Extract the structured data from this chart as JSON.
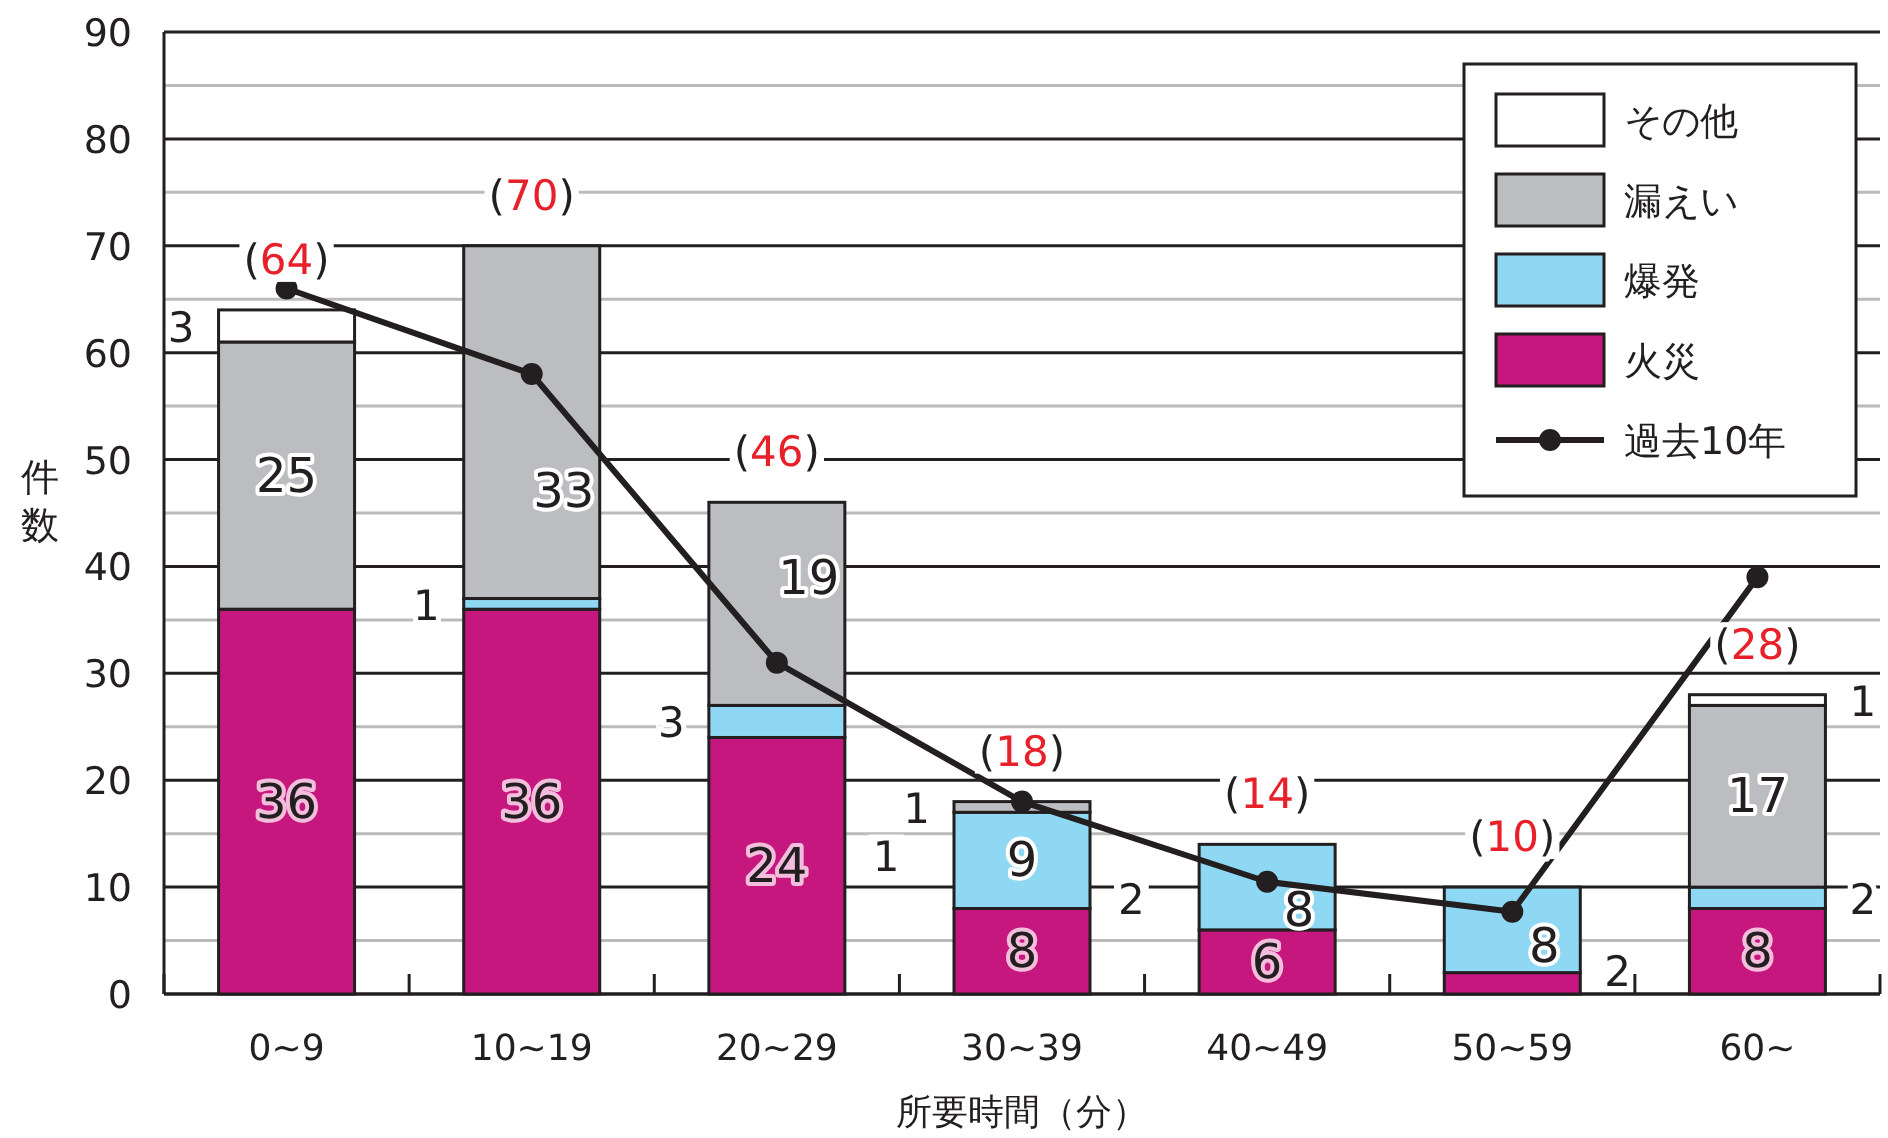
{
  "chart_data": {
    "type": "bar",
    "stacked": true,
    "xlabel": "所要時間（分）",
    "ylabel": "件数",
    "categories": [
      "0~9",
      "10~19",
      "20~29",
      "30~39",
      "40~49",
      "50~59",
      "60~"
    ],
    "series": [
      {
        "name": "火災",
        "color": "#c6177f",
        "values": [
          36,
          36,
          24,
          8,
          6,
          2,
          8
        ],
        "value_labels": [
          "36",
          "36",
          "24",
          "8",
          "6",
          "2",
          "8"
        ]
      },
      {
        "name": "爆発",
        "color": "#8ed8f4",
        "values": [
          null,
          1,
          3,
          9,
          8,
          8,
          2
        ],
        "value_labels": [
          null,
          "1",
          "3",
          "9",
          "8",
          "8",
          "2"
        ]
      },
      {
        "name": "漏えい",
        "color": "#bcbdc0",
        "values": [
          25,
          33,
          19,
          1,
          null,
          null,
          17
        ],
        "value_labels": [
          "25",
          "33",
          "19",
          "1",
          null,
          null,
          "17"
        ]
      },
      {
        "name": "その他",
        "color": "#ffffff",
        "values": [
          3,
          null,
          null,
          null,
          null,
          null,
          1
        ],
        "value_labels": [
          "3",
          null,
          null,
          null,
          null,
          null,
          "1"
        ]
      },
      {
        "name": "過去10年",
        "type": "line",
        "color": "#231f20",
        "marker": "circle",
        "line_style": "solid",
        "values": [
          66,
          58,
          31,
          18,
          10.5,
          7.7,
          39
        ]
      }
    ],
    "totals": [
      "(64)",
      "(70)",
      "(46)",
      "(18)",
      "(14)",
      "(10)",
      "(28)"
    ],
    "annotations": [
      "1",
      "2"
    ],
    "ylim": [
      0,
      90
    ],
    "yticks": [
      0,
      10,
      20,
      30,
      40,
      50,
      60,
      70,
      80,
      90
    ],
    "grid": true,
    "legend": "top right"
  }
}
